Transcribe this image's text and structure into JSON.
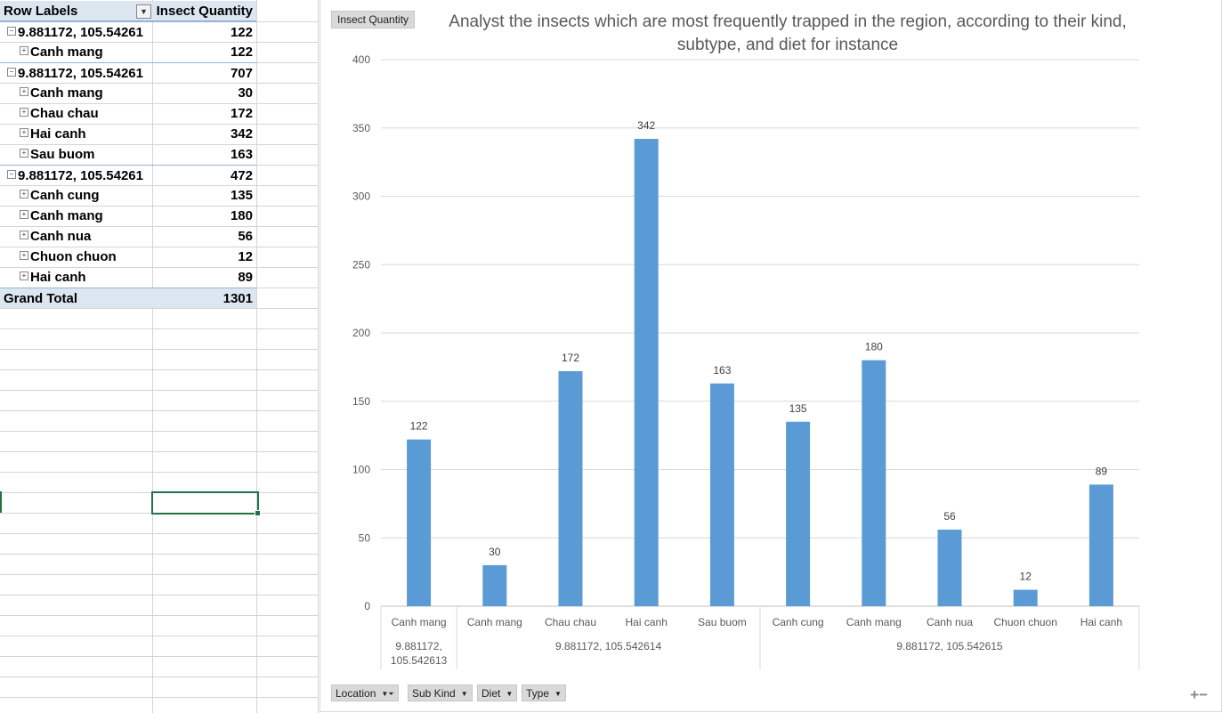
{
  "pivot": {
    "header": {
      "label": "Row Labels",
      "value": "Insect Quantity"
    },
    "groups": [
      {
        "label": "9.881172, 105.54261",
        "total": "122",
        "items": [
          {
            "label": "Canh mang",
            "value": "122"
          }
        ]
      },
      {
        "label": "9.881172, 105.54261",
        "total": "707",
        "items": [
          {
            "label": "Canh mang",
            "value": "30"
          },
          {
            "label": "Chau chau",
            "value": "172"
          },
          {
            "label": "Hai canh",
            "value": "342"
          },
          {
            "label": "Sau buom",
            "value": "163"
          }
        ]
      },
      {
        "label": "9.881172, 105.54261",
        "total": "472",
        "items": [
          {
            "label": "Canh cung",
            "value": "135"
          },
          {
            "label": "Canh mang",
            "value": "180"
          },
          {
            "label": "Canh nua",
            "value": "56"
          },
          {
            "label": "Chuon chuon",
            "value": "12"
          },
          {
            "label": "Hai canh",
            "value": "89"
          }
        ]
      }
    ],
    "grand_total": {
      "label": "Grand Total",
      "value": "1301"
    }
  },
  "chart": {
    "tag": "Insect Quantity",
    "field_buttons": [
      "Location",
      "Sub Kind",
      "Diet",
      "Type"
    ],
    "zoom_symbols": "+−"
  },
  "chart_data": {
    "type": "bar",
    "title": "Analyst the insects which are most frequently trapped in the region, according to their kind, subtype, and diet for instance",
    "categories": [
      "Canh mang",
      "Canh mang",
      "Chau chau",
      "Hai canh",
      "Sau buom",
      "Canh cung",
      "Canh mang",
      "Canh nua",
      "Chuon chuon",
      "Hai canh"
    ],
    "groups": [
      {
        "label": "9.881172, 105.542613",
        "count": 1
      },
      {
        "label": "9.881172, 105.542614",
        "count": 4
      },
      {
        "label": "9.881172, 105.542615",
        "count": 5
      }
    ],
    "series": [
      {
        "values": [
          122,
          30,
          172,
          342,
          163,
          135,
          180,
          56,
          12,
          89
        ]
      }
    ],
    "ylim": [
      0,
      400
    ],
    "yticks": [
      0,
      50,
      100,
      150,
      200,
      250,
      300,
      350,
      400
    ],
    "grid": true,
    "legend": "none",
    "bar_color": "#5b9bd5",
    "data_labels": true
  }
}
